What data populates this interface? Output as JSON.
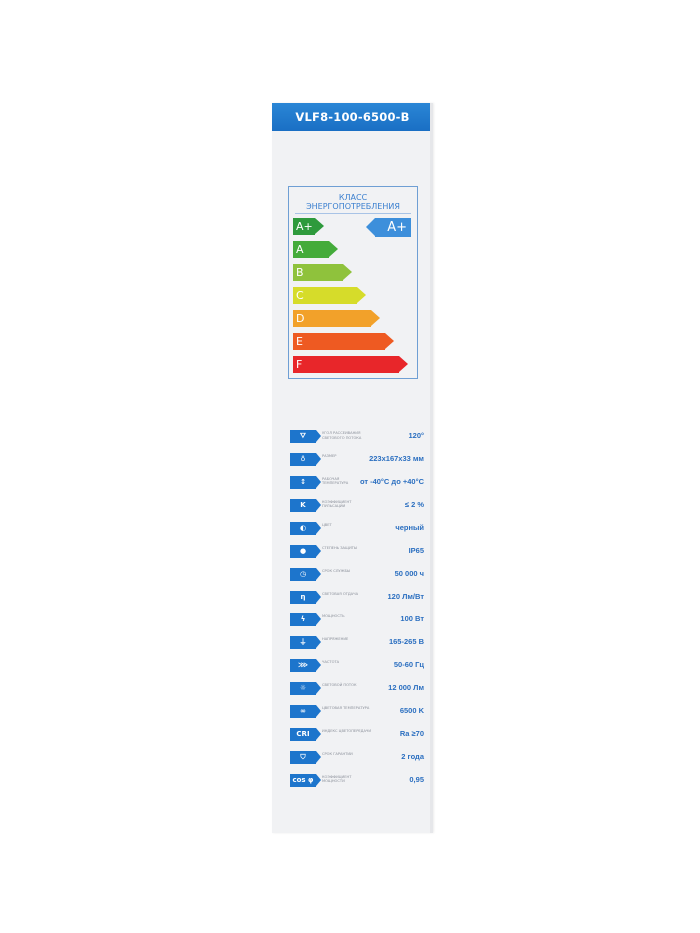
{
  "header": {
    "model": "VLF8-100-6500-B"
  },
  "energy": {
    "title_line1": "КЛАСС",
    "title_line2": "ЭНЕРГОПОТРЕБЛЕНИЯ",
    "current_class": "A+",
    "classes": [
      {
        "label": "A+",
        "color": "#2e9a3c"
      },
      {
        "label": "A",
        "color": "#44ab3a"
      },
      {
        "label": "B",
        "color": "#8fc23c"
      },
      {
        "label": "C",
        "color": "#d6dc2a"
      },
      {
        "label": "D",
        "color": "#f2a12a"
      },
      {
        "label": "E",
        "color": "#ee5a22"
      },
      {
        "label": "F",
        "color": "#e8262a"
      }
    ]
  },
  "specs": [
    {
      "icon": "lamp-beam-angle-icon",
      "glyph": "⛛",
      "label": "Угол рассеивания светового потока",
      "value": "120°"
    },
    {
      "icon": "bulb-size-icon",
      "glyph": "♁",
      "label": "Размер",
      "value": "223x167x33 мм"
    },
    {
      "icon": "thermometer-icon",
      "glyph": "↕",
      "label": "Рабочая температура",
      "value": "от -40°C до +40°C"
    },
    {
      "icon": "pulsation-icon",
      "glyph": "K",
      "label": "Коэффициент пульсации",
      "value": "≤ 2 %"
    },
    {
      "icon": "color-toggle-icon",
      "glyph": "◐",
      "label": "Цвет",
      "value": "черный"
    },
    {
      "icon": "water-drop-icon",
      "glyph": "●",
      "label": "Степень защиты",
      "value": "IP65"
    },
    {
      "icon": "clock-icon",
      "glyph": "◷",
      "label": "Срок службы",
      "value": "50 000 ч"
    },
    {
      "icon": "efficiency-icon",
      "glyph": "η",
      "label": "Световая отдача",
      "value": "120 Лм/Вт"
    },
    {
      "icon": "lightning-icon",
      "glyph": "ϟ",
      "label": "Мощность",
      "value": "100 Вт"
    },
    {
      "icon": "plug-icon",
      "glyph": "⏚",
      "label": "Напряжение",
      "value": "165-265 В"
    },
    {
      "icon": "frequency-icon",
      "glyph": "⋙",
      "label": "Частота",
      "value": "50-60 Гц"
    },
    {
      "icon": "sun-icon",
      "glyph": "☼",
      "label": "Световой поток",
      "value": "12 000 Лм"
    },
    {
      "icon": "color-temperature-icon",
      "glyph": "∞",
      "label": "Цветовая температура",
      "value": "6500 K"
    },
    {
      "icon": "cri-icon",
      "glyph": "CRI",
      "label": "Индекс цветопередачи",
      "value": "Ra ≥70"
    },
    {
      "icon": "shield-icon",
      "glyph": "⛉",
      "label": "Срок гарантии",
      "value": "2 года"
    },
    {
      "icon": "cos-phi-icon",
      "glyph": "cos φ",
      "label": "Коэффициент мощности",
      "value": "0,95"
    }
  ]
}
